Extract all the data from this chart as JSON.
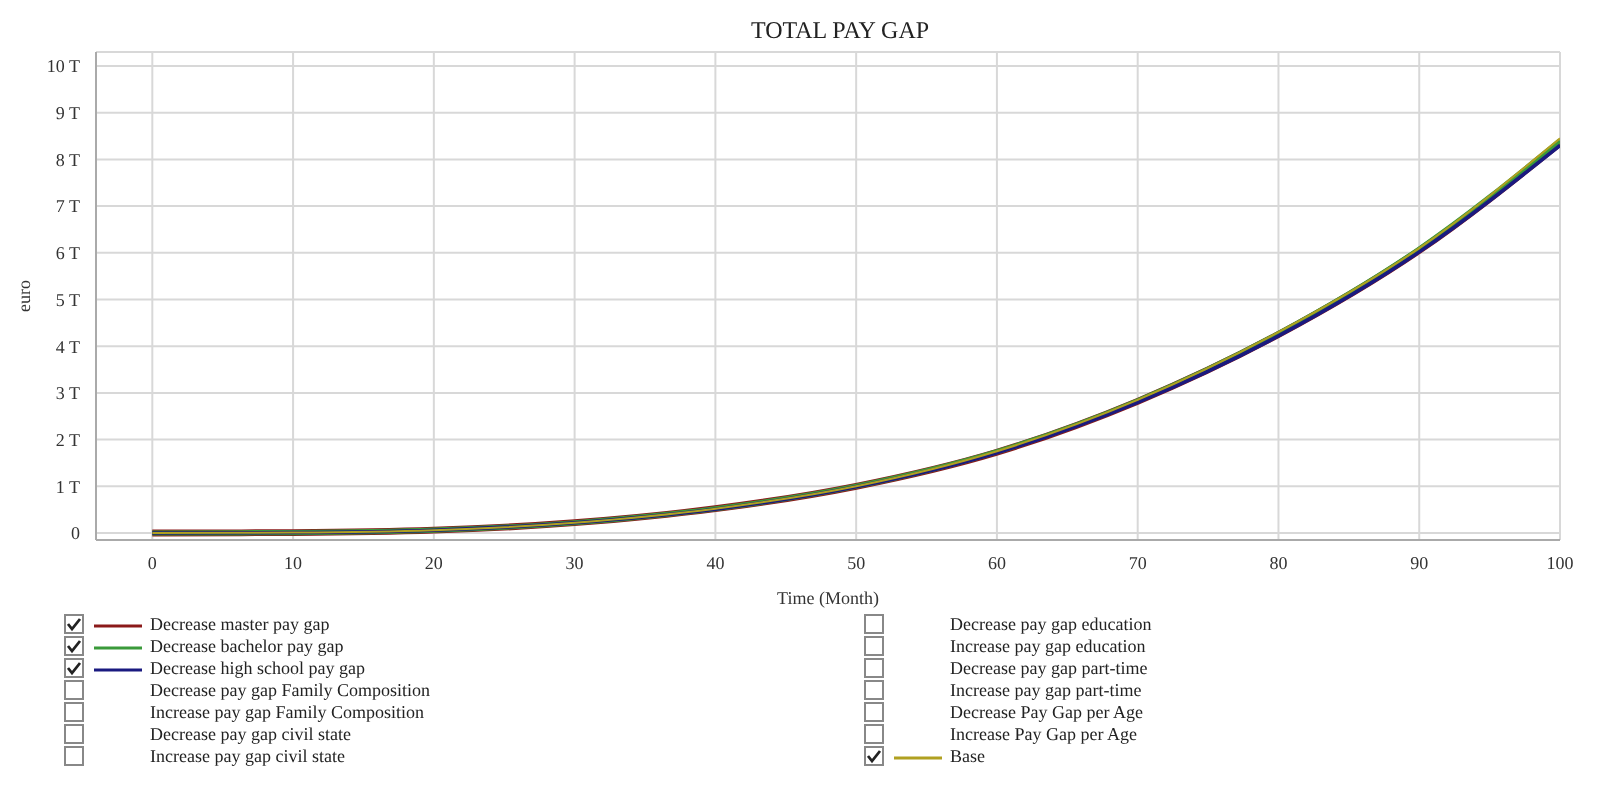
{
  "chart_data": {
    "type": "line",
    "title": "TOTAL PAY GAP",
    "xlabel": "Time (Month)",
    "ylabel": "euro",
    "x": [
      0,
      10,
      20,
      30,
      40,
      50,
      60,
      70,
      80,
      90,
      100
    ],
    "xlim": [
      -4,
      100
    ],
    "xticks": [
      0,
      10,
      20,
      30,
      40,
      50,
      60,
      70,
      80,
      90,
      100
    ],
    "ylim": [
      -0.15,
      10.3
    ],
    "yticks": [
      {
        "value": 0,
        "label": "0"
      },
      {
        "value": 1,
        "label": "1 T"
      },
      {
        "value": 2,
        "label": "2 T"
      },
      {
        "value": 3,
        "label": "3 T"
      },
      {
        "value": 4,
        "label": "4 T"
      },
      {
        "value": 5,
        "label": "5 T"
      },
      {
        "value": 6,
        "label": "6 T"
      },
      {
        "value": 7,
        "label": "7 T"
      },
      {
        "value": 8,
        "label": "8 T"
      },
      {
        "value": 9,
        "label": "9 T"
      },
      {
        "value": 10,
        "label": "10 T"
      }
    ],
    "grid": true,
    "legend": "bottom",
    "marker": "none",
    "line_style": "solid",
    "series": [
      {
        "name": "Decrease master pay gap",
        "color": "#8b1a1a",
        "values": [
          0,
          0.01,
          0.06,
          0.22,
          0.52,
          1.0,
          1.73,
          2.82,
          4.25,
          6.05,
          8.35
        ]
      },
      {
        "name": "Decrease bachelor pay gap",
        "color": "#3a9a3a",
        "values": [
          0,
          0.01,
          0.06,
          0.22,
          0.52,
          1.0,
          1.74,
          2.83,
          4.27,
          6.08,
          8.4
        ]
      },
      {
        "name": "Decrease high school pay gap",
        "color": "#1a1a80",
        "values": [
          0,
          0.01,
          0.06,
          0.22,
          0.51,
          0.99,
          1.72,
          2.8,
          4.22,
          6.02,
          8.3
        ]
      },
      {
        "name": "Base",
        "color": "#b0a020",
        "values": [
          0,
          0.01,
          0.06,
          0.22,
          0.52,
          1.0,
          1.75,
          2.85,
          4.3,
          6.1,
          8.45
        ]
      }
    ],
    "annotations": [
      "Decrease pay gap Family Composition",
      "Increase pay gap Family Composition",
      "Decrease pay gap civil state",
      "Increase pay gap civil state",
      "Decrease pay gap education",
      "Increase pay gap education",
      "Decrease pay gap part-time",
      "Increase pay gap part-time",
      "Decrease Pay Gap per Age",
      "Increase Pay Gap per Age"
    ]
  }
}
